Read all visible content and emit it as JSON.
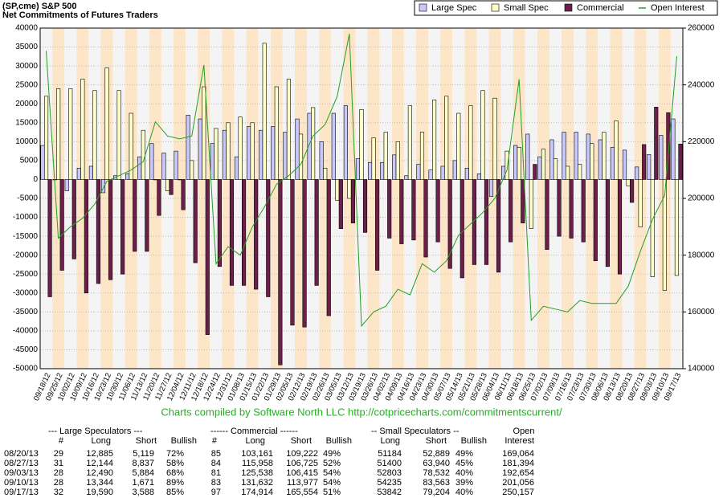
{
  "chart_data": {
    "type": "bar",
    "title": "(SP,cme) S&P 500",
    "subtitle": "Net Commitments of Futures Traders",
    "credit": "Charts compiled by Software North LLC  http://cotpricecharts.com/commitmentscurrent/",
    "categories": [
      "09/18/12",
      "09/25/12",
      "10/02/12",
      "10/09/12",
      "10/16/12",
      "10/23/12",
      "10/30/12",
      "11/06/12",
      "11/13/12",
      "11/20/12",
      "11/27/12",
      "12/04/12",
      "12/11/12",
      "12/18/12",
      "12/24/12",
      "12/31/12",
      "01/08/13",
      "01/15/13",
      "01/22/13",
      "01/29/13",
      "02/05/13",
      "02/12/13",
      "02/19/13",
      "02/26/13",
      "03/05/13",
      "03/12/13",
      "03/19/13",
      "03/26/13",
      "04/02/13",
      "04/09/13",
      "04/16/13",
      "04/23/13",
      "04/30/13",
      "05/07/13",
      "05/14/13",
      "05/21/13",
      "05/28/13",
      "06/04/13",
      "06/11/13",
      "06/18/13",
      "06/25/13",
      "07/02/13",
      "07/09/13",
      "07/16/13",
      "07/23/13",
      "07/30/13",
      "08/06/13",
      "08/13/13",
      "08/20/13",
      "08/27/13",
      "09/03/13",
      "09/10/13",
      "09/17/13"
    ],
    "series": [
      {
        "name": "Large Spec",
        "color": "#c8c8ff",
        "values": [
          9000,
          0,
          -3000,
          3000,
          3500,
          -3500,
          1000,
          1500,
          6000,
          9500,
          7000,
          7500,
          17000,
          16000,
          9500,
          13000,
          6000,
          14000,
          13000,
          14000,
          12500,
          16000,
          17500,
          10000,
          17500,
          19500,
          5500,
          4500,
          4500,
          6500,
          1000,
          4000,
          2500,
          3500,
          5000,
          3000,
          1500,
          -4500,
          3500,
          9000,
          12000,
          6000,
          10500,
          12500,
          12500,
          12000,
          10500,
          8500,
          7766,
          3307,
          6606,
          11673,
          16002
        ]
      },
      {
        "name": "Small Spec",
        "color": "#ffffc8",
        "values": [
          22000,
          24000,
          24000,
          26500,
          23500,
          29500,
          23500,
          17500,
          13000,
          0,
          -3000,
          0,
          5000,
          24500,
          13500,
          15000,
          16500,
          15000,
          36000,
          24500,
          26500,
          12000,
          19000,
          3000,
          -5500,
          -5000,
          18500,
          11000,
          12500,
          10000,
          19500,
          12500,
          21000,
          22000,
          17500,
          19500,
          23500,
          21500,
          7500,
          8500,
          -13000,
          8000,
          5500,
          3500,
          4000,
          9500,
          12500,
          15500,
          -1705,
          -12540,
          -25730,
          -29328,
          -25362
        ]
      },
      {
        "name": "Commercial",
        "color": "#6b1f4a",
        "values": [
          -31000,
          -24000,
          -21000,
          -30000,
          -27500,
          -26500,
          -25000,
          -19000,
          -19000,
          -9500,
          -4000,
          -8000,
          -22000,
          -41000,
          -23000,
          -28000,
          -28000,
          -29000,
          -31000,
          -49000,
          -38500,
          -39000,
          -28000,
          -36000,
          -13000,
          -11500,
          -14000,
          -24000,
          -15500,
          -17000,
          -16000,
          -20500,
          -16500,
          -23500,
          -26000,
          -22500,
          -22500,
          -24500,
          -16500,
          -11500,
          4000,
          -18500,
          -15000,
          -15500,
          -16500,
          -21500,
          -23000,
          -25000,
          -6061,
          9233,
          19123,
          17655,
          9360
        ]
      },
      {
        "name": "Open Interest",
        "color": "#22a022",
        "type": "line",
        "axis": "y2",
        "values": [
          252000,
          186000,
          190000,
          193000,
          198000,
          206000,
          208000,
          210000,
          213000,
          227000,
          222000,
          221000,
          222000,
          247000,
          177000,
          183000,
          180000,
          190000,
          197000,
          205000,
          208000,
          212000,
          222000,
          226000,
          236000,
          258000,
          155000,
          160000,
          162000,
          168000,
          166000,
          177000,
          174000,
          178000,
          187000,
          191000,
          195000,
          200000,
          210000,
          242000,
          157000,
          162000,
          161000,
          160000,
          164000,
          163000,
          163000,
          163000,
          169064,
          181394,
          192654,
          201056,
          250157
        ]
      }
    ],
    "ylim": [
      -50000,
      40000
    ],
    "yticks": [
      -50000,
      -45000,
      -40000,
      -35000,
      -30000,
      -25000,
      -20000,
      -15000,
      -10000,
      -5000,
      0,
      5000,
      10000,
      15000,
      20000,
      25000,
      30000,
      35000,
      40000
    ],
    "y2lim": [
      140000,
      260000
    ],
    "y2ticks": [
      140000,
      160000,
      180000,
      200000,
      220000,
      240000,
      260000
    ],
    "grid": true,
    "legend": "top-right"
  },
  "table": {
    "group_headers": [
      "--- Large Speculators ---",
      "------ Commercial ------",
      "-- Small Speculators --",
      "Open"
    ],
    "columns": [
      "#",
      "Long",
      "Short",
      "Bullish",
      "#",
      "Long",
      "Short",
      "Bullish",
      "Long",
      "Short",
      "Bullish",
      "Interest"
    ],
    "rows": [
      [
        "08/20/13",
        "29",
        "12,885",
        "5,119",
        "72%",
        "85",
        "103,161",
        "109,222",
        "49%",
        "51184",
        "52,889",
        "49%",
        "169,064"
      ],
      [
        "08/27/13",
        "31",
        "12,144",
        "8,837",
        "58%",
        "84",
        "115,958",
        "106,725",
        "52%",
        "51400",
        "63,940",
        "45%",
        "181,394"
      ],
      [
        "09/03/13",
        "28",
        "12,490",
        "5,884",
        "68%",
        "81",
        "125,538",
        "106,415",
        "54%",
        "52803",
        "78,532",
        "40%",
        "192,654"
      ],
      [
        "09/10/13",
        "28",
        "13,344",
        "1,671",
        "89%",
        "83",
        "131,632",
        "113,977",
        "54%",
        "54235",
        "83,563",
        "39%",
        "201,056"
      ],
      [
        "09/17/13",
        "32",
        "19,590",
        "3,588",
        "85%",
        "97",
        "174,914",
        "165,554",
        "51%",
        "53842",
        "79,204",
        "40%",
        "250,157"
      ]
    ]
  }
}
